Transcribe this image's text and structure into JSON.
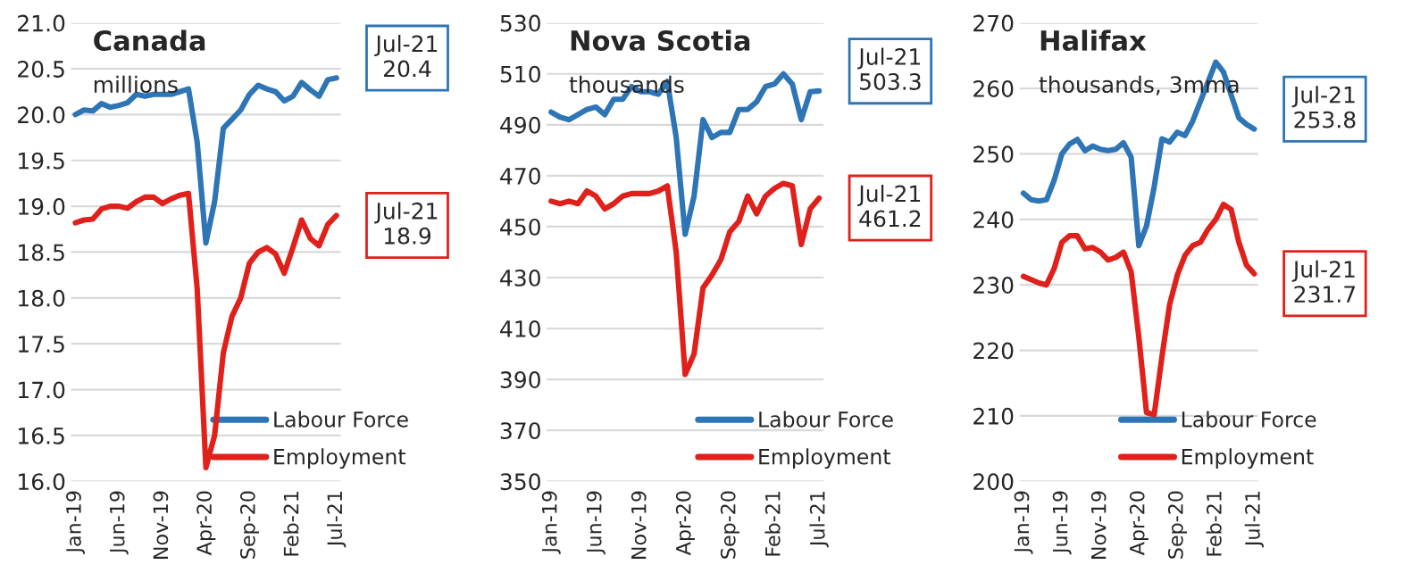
{
  "chart_data": [
    {
      "type": "line",
      "title": "Canada",
      "subtitle": "millions",
      "categories": [
        "Jan-19",
        null,
        null,
        null,
        null,
        "Jun-19",
        null,
        null,
        null,
        null,
        "Nov-19",
        null,
        null,
        null,
        null,
        "Apr-20",
        null,
        null,
        null,
        null,
        "Sep-20",
        null,
        null,
        null,
        null,
        "Feb-21",
        null,
        null,
        null,
        null,
        "Jul-21"
      ],
      "series": [
        {
          "name": "Labour Force",
          "color": "#2e75b6",
          "values": [
            20.0,
            20.05,
            20.04,
            20.12,
            20.08,
            20.1,
            20.13,
            20.22,
            20.2,
            20.22,
            20.22,
            20.22,
            20.25,
            20.28,
            19.7,
            18.6,
            19.05,
            19.85,
            19.95,
            20.05,
            20.22,
            20.32,
            20.28,
            20.25,
            20.15,
            20.2,
            20.35,
            20.27,
            20.2,
            20.38,
            20.4
          ]
        },
        {
          "name": "Employment",
          "color": "#e0201b",
          "values": [
            18.82,
            18.85,
            18.86,
            18.97,
            19.0,
            19.0,
            18.98,
            19.05,
            19.1,
            19.1,
            19.03,
            19.08,
            19.12,
            19.14,
            18.1,
            16.15,
            16.5,
            17.4,
            17.8,
            18.0,
            18.38,
            18.5,
            18.55,
            18.48,
            18.27,
            18.55,
            18.85,
            18.65,
            18.57,
            18.8,
            18.9
          ]
        }
      ],
      "ylim": [
        16.0,
        21.0
      ],
      "yticks": [
        {
          "value": 16,
          "label": "16.0"
        },
        16.5,
        {
          "value": 17,
          "label": "17.0"
        },
        17.5,
        {
          "value": 18,
          "label": "18.0"
        },
        18.5,
        {
          "value": 19,
          "label": "19.0"
        },
        19.5,
        {
          "value": 20,
          "label": "20.0"
        },
        20.5,
        {
          "value": 21,
          "label": "21.0"
        }
      ],
      "annotations": [
        "Jul-21\n20.4",
        "Jul-21\n18.9"
      ],
      "grid": "y",
      "legend": "bottom right",
      "marker": "none",
      "line_style": "solid"
    },
    {
      "type": "line",
      "title": "Nova Scotia",
      "subtitle": "thousands",
      "categories": [
        "Jan-19",
        null,
        null,
        null,
        null,
        "Jun-19",
        null,
        null,
        null,
        null,
        "Nov-19",
        null,
        null,
        null,
        null,
        "Apr-20",
        null,
        null,
        null,
        null,
        "Sep-20",
        null,
        null,
        null,
        null,
        "Feb-21",
        null,
        null,
        null,
        null,
        "Jul-21"
      ],
      "series": [
        {
          "name": "Labour Force",
          "color": "#2e75b6",
          "values": [
            495,
            493,
            492,
            494,
            496,
            497,
            494,
            500,
            500,
            505,
            503,
            503,
            502,
            507,
            485,
            447,
            462,
            492,
            485,
            487,
            487,
            496,
            496,
            499,
            505,
            506,
            510,
            506,
            492,
            503,
            503.3
          ]
        },
        {
          "name": "Employment",
          "color": "#e0201b",
          "values": [
            460,
            459,
            460,
            459,
            464,
            462,
            457,
            459,
            462,
            463,
            463,
            463,
            464,
            466,
            440,
            392,
            400,
            426,
            431,
            437,
            448,
            452,
            462,
            455,
            462,
            465,
            467,
            466,
            443,
            457,
            461.2
          ]
        }
      ],
      "ylim": [
        350,
        530
      ],
      "yticks": [
        350,
        370,
        390,
        410,
        430,
        450,
        470,
        490,
        510,
        530
      ],
      "annotations": [
        "Jul-21\n503.3",
        "Jul-21\n461.2"
      ],
      "grid": "y",
      "legend": "bottom right",
      "marker": "none",
      "line_style": "solid"
    },
    {
      "type": "line",
      "title": "Halifax",
      "subtitle": "thousands, 3mma",
      "categories": [
        "Jan-19",
        null,
        null,
        null,
        null,
        "Jun-19",
        null,
        null,
        null,
        null,
        "Nov-19",
        null,
        null,
        null,
        null,
        "Apr-20",
        null,
        null,
        null,
        null,
        "Sep-20",
        null,
        null,
        null,
        null,
        "Feb-21",
        null,
        null,
        null,
        null,
        "Jul-21"
      ],
      "series": [
        {
          "name": "Labour Force",
          "color": "#2e75b6",
          "values": [
            244,
            243,
            242.8,
            243,
            246,
            250,
            251.5,
            252.2,
            250.5,
            251.2,
            250.7,
            250.5,
            250.7,
            251.7,
            249.5,
            236,
            239,
            245,
            252.3,
            251.8,
            253.3,
            252.8,
            255,
            258,
            261,
            264,
            262.5,
            259,
            255.5,
            254.5,
            253.8
          ]
        },
        {
          "name": "Employment",
          "color": "#e0201b",
          "values": [
            231.3,
            230.8,
            230.3,
            230,
            232.5,
            236.5,
            237.5,
            237.5,
            235.5,
            235.7,
            235,
            233.8,
            234.2,
            235,
            232,
            222,
            210.5,
            210.2,
            219,
            227,
            231.5,
            234.5,
            236,
            236.5,
            238.5,
            240,
            242.3,
            241.5,
            236.5,
            233,
            231.7
          ]
        }
      ],
      "ylim": [
        200,
        270
      ],
      "yticks": [
        200,
        210,
        220,
        230,
        240,
        250,
        260,
        270
      ],
      "annotations": [
        "Jul-21\n253.8",
        "Jul-21\n231.7"
      ],
      "grid": "y",
      "legend": "bottom right",
      "marker": "none",
      "line_style": "solid"
    }
  ]
}
